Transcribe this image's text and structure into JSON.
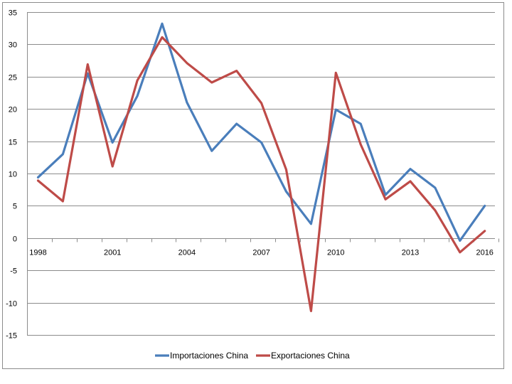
{
  "chart_data": {
    "type": "line",
    "title": "",
    "xlabel": "",
    "ylabel": "",
    "x": [
      1998,
      1999,
      2000,
      2001,
      2002,
      2003,
      2004,
      2005,
      2006,
      2007,
      2008,
      2009,
      2010,
      2011,
      2012,
      2013,
      2014,
      2015,
      2016
    ],
    "x_tick_labels": [
      "1998",
      "2001",
      "2004",
      "2007",
      "2010",
      "2013",
      "2016"
    ],
    "x_tick_values": [
      1998,
      2001,
      2004,
      2007,
      2010,
      2013,
      2016
    ],
    "y_tick_labels": [
      "35",
      "30",
      "25",
      "20",
      "15",
      "10",
      "5",
      "0",
      "-5",
      "-10",
      "-15"
    ],
    "y_tick_values": [
      35,
      30,
      25,
      20,
      15,
      10,
      5,
      0,
      -5,
      -10,
      -15
    ],
    "ylim": [
      -15,
      35
    ],
    "grid": "horizontal",
    "legend_position": "bottom",
    "series": [
      {
        "name": "Importaciones China",
        "color": "#4a7ebb",
        "values": [
          9.4,
          13.0,
          25.5,
          14.8,
          22.0,
          33.2,
          21.0,
          13.5,
          17.7,
          14.8,
          7.2,
          2.2,
          19.9,
          17.7,
          6.7,
          10.7,
          7.8,
          -0.4,
          5.0
        ]
      },
      {
        "name": "Exportaciones China",
        "color": "#be4b48",
        "values": [
          8.9,
          5.7,
          26.9,
          11.1,
          24.4,
          31.1,
          27.1,
          24.1,
          25.9,
          20.9,
          10.6,
          -11.3,
          25.6,
          14.5,
          6.0,
          8.8,
          4.3,
          -2.2,
          1.1
        ]
      }
    ]
  }
}
